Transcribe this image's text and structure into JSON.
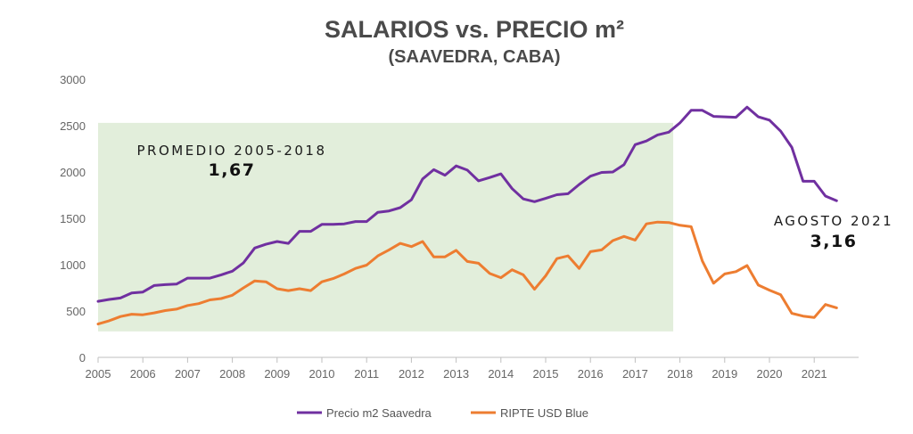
{
  "chart_data": {
    "type": "line",
    "title": "SALARIOS vs. PRECIO m²",
    "subtitle": "(SAAVEDRA, CABA)",
    "ylim": [
      0,
      3000
    ],
    "y_ticks": [
      0,
      500,
      1000,
      1500,
      2000,
      2500,
      3000
    ],
    "xlim": [
      2005,
      2021.6
    ],
    "x_ticks": [
      2005,
      2006,
      2007,
      2008,
      2009,
      2010,
      2011,
      2012,
      2013,
      2014,
      2015,
      2016,
      2017,
      2018,
      2019,
      2020,
      2021
    ],
    "grid": false,
    "legend_position": "bottom-center",
    "highlight_range": {
      "x": [
        2005,
        2017.85
      ],
      "y": [
        280,
        2530
      ],
      "color": "#e2eedb"
    },
    "annotations": [
      {
        "label": "PROMEDIO 2005-2018",
        "value": "1,67"
      },
      {
        "label": "AGOSTO 2021",
        "value": "3,16"
      }
    ],
    "series": [
      {
        "name": "Precio m2 Saavedra",
        "color": "#7030a0",
        "points": [
          [
            2005.0,
            605
          ],
          [
            2005.25,
            625
          ],
          [
            2005.5,
            640
          ],
          [
            2005.75,
            695
          ],
          [
            2006.0,
            705
          ],
          [
            2006.25,
            775
          ],
          [
            2006.5,
            785
          ],
          [
            2006.75,
            790
          ],
          [
            2007.0,
            855
          ],
          [
            2007.25,
            855
          ],
          [
            2007.5,
            855
          ],
          [
            2007.75,
            890
          ],
          [
            2008.0,
            930
          ],
          [
            2008.25,
            1020
          ],
          [
            2008.5,
            1180
          ],
          [
            2008.75,
            1220
          ],
          [
            2009.0,
            1250
          ],
          [
            2009.25,
            1230
          ],
          [
            2009.5,
            1360
          ],
          [
            2009.75,
            1360
          ],
          [
            2010.0,
            1435
          ],
          [
            2010.25,
            1435
          ],
          [
            2010.5,
            1440
          ],
          [
            2010.75,
            1465
          ],
          [
            2011.0,
            1465
          ],
          [
            2011.25,
            1565
          ],
          [
            2011.5,
            1580
          ],
          [
            2011.75,
            1615
          ],
          [
            2012.0,
            1700
          ],
          [
            2012.25,
            1925
          ],
          [
            2012.5,
            2025
          ],
          [
            2012.75,
            1965
          ],
          [
            2013.0,
            2065
          ],
          [
            2013.25,
            2020
          ],
          [
            2013.5,
            1905
          ],
          [
            2013.75,
            1940
          ],
          [
            2014.0,
            1980
          ],
          [
            2014.25,
            1820
          ],
          [
            2014.5,
            1710
          ],
          [
            2014.75,
            1680
          ],
          [
            2015.0,
            1715
          ],
          [
            2015.25,
            1755
          ],
          [
            2015.5,
            1765
          ],
          [
            2015.75,
            1865
          ],
          [
            2016.0,
            1955
          ],
          [
            2016.25,
            1995
          ],
          [
            2016.5,
            2000
          ],
          [
            2016.75,
            2080
          ],
          [
            2017.0,
            2295
          ],
          [
            2017.25,
            2335
          ],
          [
            2017.5,
            2400
          ],
          [
            2017.75,
            2430
          ],
          [
            2018.0,
            2530
          ],
          [
            2018.25,
            2665
          ],
          [
            2018.5,
            2665
          ],
          [
            2018.75,
            2600
          ],
          [
            2019.0,
            2595
          ],
          [
            2019.25,
            2590
          ],
          [
            2019.5,
            2700
          ],
          [
            2019.75,
            2595
          ],
          [
            2020.0,
            2560
          ],
          [
            2020.25,
            2440
          ],
          [
            2020.5,
            2265
          ],
          [
            2020.75,
            1900
          ],
          [
            2021.0,
            1900
          ],
          [
            2021.25,
            1740
          ],
          [
            2021.5,
            1690
          ]
        ]
      },
      {
        "name": "RIPTE USD Blue",
        "color": "#ed7d31",
        "points": [
          [
            2005.0,
            360
          ],
          [
            2005.25,
            395
          ],
          [
            2005.5,
            440
          ],
          [
            2005.75,
            465
          ],
          [
            2006.0,
            460
          ],
          [
            2006.25,
            480
          ],
          [
            2006.5,
            505
          ],
          [
            2006.75,
            520
          ],
          [
            2007.0,
            560
          ],
          [
            2007.25,
            580
          ],
          [
            2007.5,
            620
          ],
          [
            2007.75,
            635
          ],
          [
            2008.0,
            670
          ],
          [
            2008.25,
            750
          ],
          [
            2008.5,
            825
          ],
          [
            2008.75,
            815
          ],
          [
            2009.0,
            740
          ],
          [
            2009.25,
            720
          ],
          [
            2009.5,
            740
          ],
          [
            2009.75,
            720
          ],
          [
            2010.0,
            815
          ],
          [
            2010.25,
            850
          ],
          [
            2010.5,
            900
          ],
          [
            2010.75,
            960
          ],
          [
            2011.0,
            995
          ],
          [
            2011.25,
            1095
          ],
          [
            2011.5,
            1160
          ],
          [
            2011.75,
            1230
          ],
          [
            2012.0,
            1195
          ],
          [
            2012.25,
            1250
          ],
          [
            2012.5,
            1085
          ],
          [
            2012.75,
            1085
          ],
          [
            2013.0,
            1155
          ],
          [
            2013.25,
            1035
          ],
          [
            2013.5,
            1015
          ],
          [
            2013.75,
            905
          ],
          [
            2014.0,
            860
          ],
          [
            2014.25,
            945
          ],
          [
            2014.5,
            890
          ],
          [
            2014.75,
            735
          ],
          [
            2015.0,
            880
          ],
          [
            2015.25,
            1065
          ],
          [
            2015.5,
            1095
          ],
          [
            2015.75,
            960
          ],
          [
            2016.0,
            1140
          ],
          [
            2016.25,
            1160
          ],
          [
            2016.5,
            1260
          ],
          [
            2016.75,
            1305
          ],
          [
            2017.0,
            1265
          ],
          [
            2017.25,
            1440
          ],
          [
            2017.5,
            1460
          ],
          [
            2017.75,
            1455
          ],
          [
            2018.0,
            1425
          ],
          [
            2018.25,
            1410
          ],
          [
            2018.5,
            1040
          ],
          [
            2018.75,
            800
          ],
          [
            2019.0,
            900
          ],
          [
            2019.25,
            925
          ],
          [
            2019.5,
            990
          ],
          [
            2019.75,
            780
          ],
          [
            2020.0,
            725
          ],
          [
            2020.25,
            675
          ],
          [
            2020.5,
            475
          ],
          [
            2020.75,
            445
          ],
          [
            2021.0,
            430
          ],
          [
            2021.25,
            570
          ],
          [
            2021.5,
            535
          ]
        ]
      }
    ]
  }
}
